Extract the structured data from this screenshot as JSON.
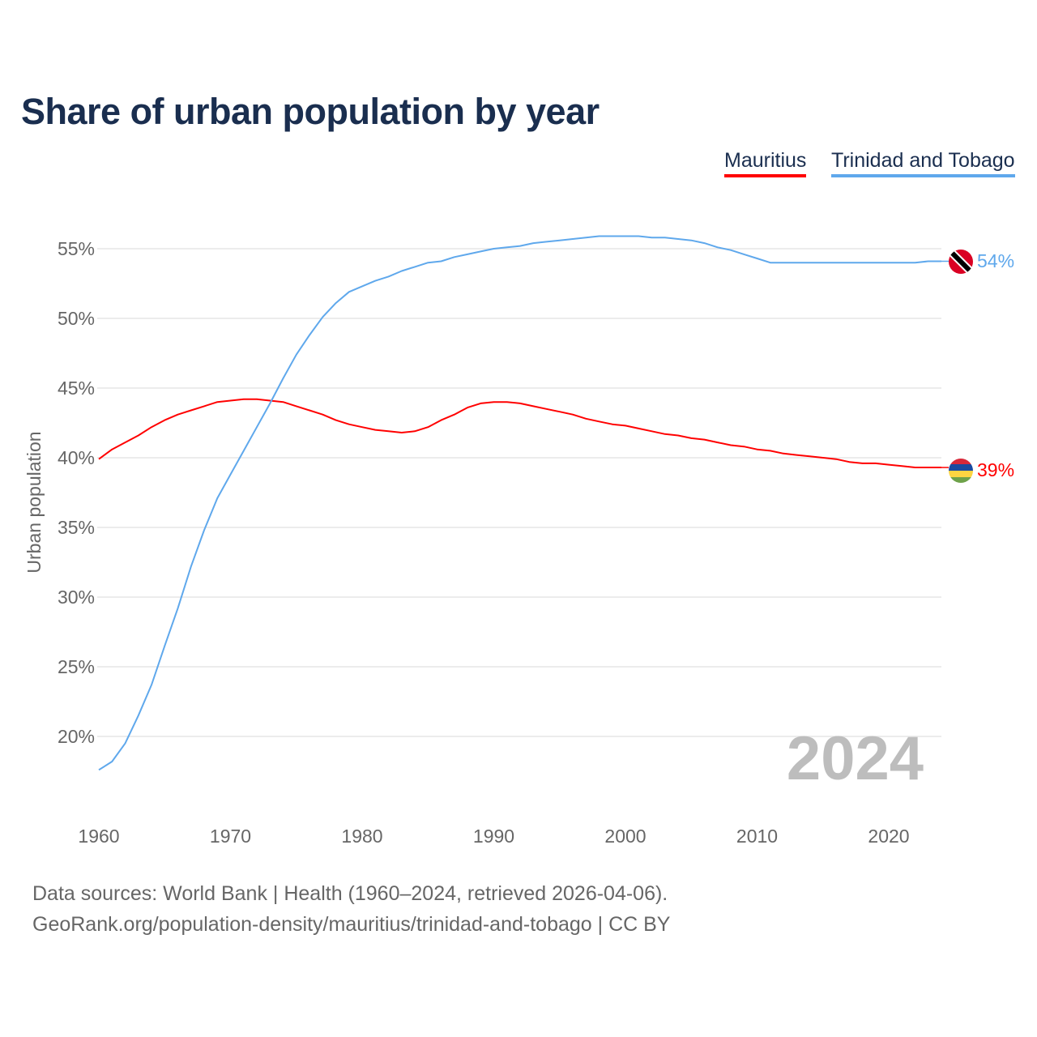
{
  "chart_data": {
    "type": "line",
    "title": "Share of urban population by year",
    "ylabel": "Urban population",
    "xlabel": "",
    "xlim": [
      1960,
      2024
    ],
    "ylim": [
      15,
      58
    ],
    "x_ticks": [
      1960,
      1970,
      1980,
      1990,
      2000,
      2010,
      2020
    ],
    "y_ticks": [
      20,
      25,
      30,
      35,
      40,
      45,
      50,
      55
    ],
    "y_tick_labels": [
      "20%",
      "25%",
      "30%",
      "35%",
      "40%",
      "45%",
      "50%",
      "55%"
    ],
    "x_tick_labels": [
      "1960",
      "1970",
      "1980",
      "1990",
      "2000",
      "2010",
      "2020"
    ],
    "grid": true,
    "legend_position": "top-right",
    "year_watermark": "2024",
    "series": [
      {
        "name": "Mauritius",
        "color": "#ff0000",
        "end_label": "39%",
        "flag": "mauritius-flag",
        "values": [
          39.9,
          40.6,
          41.1,
          41.6,
          42.2,
          42.7,
          43.1,
          43.4,
          43.7,
          44.0,
          44.1,
          44.2,
          44.2,
          44.1,
          44.0,
          43.7,
          43.4,
          43.1,
          42.7,
          42.4,
          42.2,
          42.0,
          41.9,
          41.8,
          41.9,
          42.2,
          42.7,
          43.1,
          43.6,
          43.9,
          44.0,
          44.0,
          43.9,
          43.7,
          43.5,
          43.3,
          43.1,
          42.8,
          42.6,
          42.4,
          42.3,
          42.1,
          41.9,
          41.7,
          41.6,
          41.4,
          41.3,
          41.1,
          40.9,
          40.8,
          40.6,
          40.5,
          40.3,
          40.2,
          40.1,
          40.0,
          39.9,
          39.7,
          39.6,
          39.6,
          39.5,
          39.4,
          39.3,
          39.3,
          39.3
        ]
      },
      {
        "name": "Trinidad and Tobago",
        "color": "#5fa8ec",
        "end_label": "54%",
        "flag": "trinidad-flag",
        "values": [
          17.6,
          18.2,
          19.5,
          21.5,
          23.7,
          26.5,
          29.2,
          32.2,
          34.8,
          37.1,
          38.8,
          40.5,
          42.2,
          43.9,
          45.7,
          47.4,
          48.8,
          50.1,
          51.1,
          51.9,
          52.3,
          52.7,
          53.0,
          53.4,
          53.7,
          54.0,
          54.1,
          54.4,
          54.6,
          54.8,
          55.0,
          55.1,
          55.2,
          55.4,
          55.5,
          55.6,
          55.7,
          55.8,
          55.9,
          55.9,
          55.9,
          55.9,
          55.8,
          55.8,
          55.7,
          55.6,
          55.4,
          55.1,
          54.9,
          54.6,
          54.3,
          54.0,
          54.0,
          54.0,
          54.0,
          54.0,
          54.0,
          54.0,
          54.0,
          54.0,
          54.0,
          54.0,
          54.0,
          54.1,
          54.1
        ]
      }
    ]
  },
  "legend": {
    "mauritius": "Mauritius",
    "trinidad": "Trinidad and Tobago"
  },
  "footer": {
    "line1": "Data sources: World Bank | Health (1960–2024, retrieved 2026-04-06).",
    "line2": "GeoRank.org/population-density/mauritius/trinidad-and-tobago | CC BY"
  }
}
